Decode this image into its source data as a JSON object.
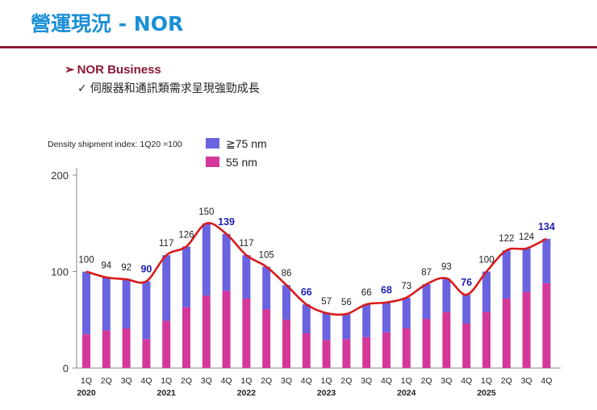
{
  "slide": {
    "title": "營運現況 - NOR",
    "bullet": "NOR Business",
    "bullet_marker": "➢",
    "sub_bullet": "伺服器和通訊類需求呈現強勁成長",
    "sub_marker": "✓"
  },
  "colors": {
    "title": "#1a8fd6",
    "accent": "#8b1a33",
    "series_75nm": "#6a63e0",
    "series_55nm": "#d4379a",
    "trend_line": "#d81b1b",
    "highlight_label": "#1f1fb5"
  },
  "chart_data": {
    "type": "bar",
    "stacked": true,
    "note": "Density shipment index: 1Q20 =100",
    "quarters": [
      "1Q",
      "2Q",
      "3Q",
      "4Q",
      "1Q",
      "2Q",
      "3Q",
      "4Q",
      "1Q",
      "2Q",
      "3Q",
      "4Q",
      "1Q",
      "2Q",
      "3Q",
      "4Q",
      "1Q",
      "2Q",
      "3Q",
      "4Q",
      "1Q",
      "2Q",
      "3Q",
      "4Q"
    ],
    "years": [
      "2020",
      "",
      "",
      "",
      "2021",
      "",
      "",
      "",
      "2022",
      "",
      "",
      "",
      "2023",
      "",
      "",
      "",
      "2024",
      "",
      "",
      "",
      "2025",
      "",
      "",
      ""
    ],
    "totals": [
      100,
      94,
      92,
      90,
      117,
      126,
      150,
      139,
      117,
      105,
      86,
      66,
      57,
      56,
      66,
      68,
      73,
      87,
      93,
      76,
      100,
      122,
      124,
      134
    ],
    "total_labels": [
      "100",
      "94",
      "92",
      "90",
      "117",
      "126",
      "150",
      "139",
      "117",
      "105",
      "86",
      "66",
      "57",
      "56",
      "66",
      "68",
      "73",
      "87",
      "93",
      "76",
      "100",
      "122",
      "124",
      "134"
    ],
    "highlighted": [
      false,
      false,
      false,
      true,
      false,
      false,
      false,
      true,
      false,
      false,
      false,
      true,
      false,
      false,
      false,
      true,
      false,
      false,
      false,
      true,
      false,
      false,
      false,
      true
    ],
    "series": [
      {
        "name": "≧75 nm",
        "values": [
          65,
          55,
          51,
          60,
          68,
          63,
          75,
          59,
          45,
          44,
          36,
          30,
          28,
          26,
          34,
          31,
          32,
          36,
          35,
          30,
          42,
          50,
          45,
          46
        ]
      },
      {
        "name": "55 nm",
        "values": [
          35,
          39,
          41,
          30,
          49,
          63,
          75,
          80,
          72,
          61,
          50,
          36,
          29,
          30,
          32,
          37,
          41,
          51,
          58,
          46,
          58,
          72,
          79,
          88
        ]
      }
    ],
    "yticks": [
      0,
      100,
      200
    ],
    "ylim": [
      0,
      200
    ],
    "legend": "top-left",
    "trend_line": true
  }
}
